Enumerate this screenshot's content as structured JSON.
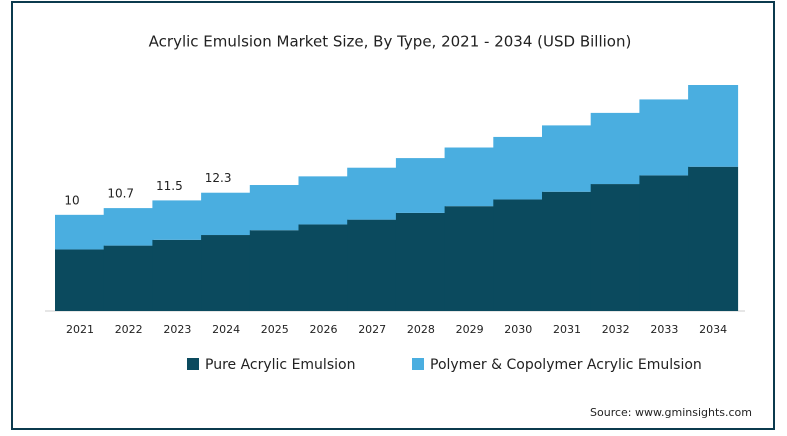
{
  "chart_data": {
    "type": "stacked-bar",
    "title": "Acrylic Emulsion  Market Size, By Type, 2021 - 2034 (USD Billion)",
    "categories": [
      "2021",
      "2022",
      "2023",
      "2024",
      "2025",
      "2026",
      "2027",
      "2028",
      "2029",
      "2030",
      "2031",
      "2032",
      "2033",
      "2034"
    ],
    "series": [
      {
        "name": "Pure Acrylic Emulsion",
        "color": "#0b4a5e",
        "values": [
          6.4,
          6.8,
          7.4,
          7.9,
          8.4,
          9.0,
          9.5,
          10.2,
          10.9,
          11.6,
          12.4,
          13.2,
          14.1,
          15.0
        ]
      },
      {
        "name": "Polymer & Copolymer Acrylic Emulsion",
        "color": "#4aaee0",
        "values": [
          3.6,
          3.9,
          4.1,
          4.4,
          4.7,
          5.0,
          5.4,
          5.7,
          6.1,
          6.5,
          6.9,
          7.4,
          7.9,
          8.5
        ]
      }
    ],
    "totals": [
      10,
      10.7,
      11.5,
      12.3
    ],
    "source": "Source: www.gminsights.com"
  }
}
